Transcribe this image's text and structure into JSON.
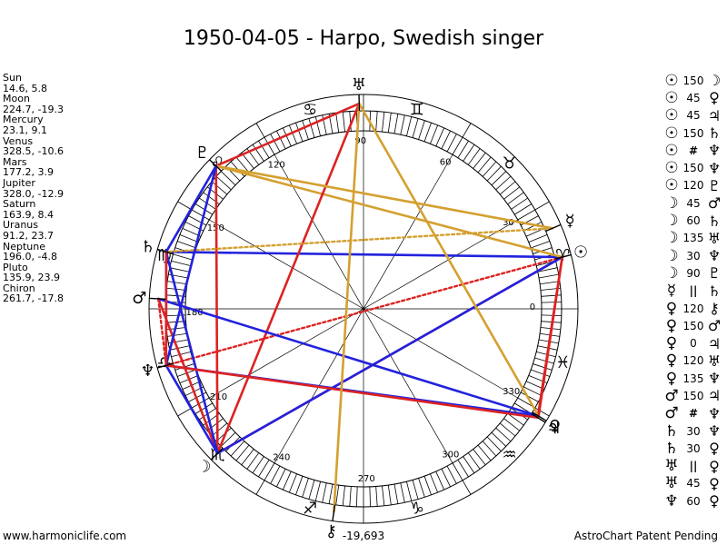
{
  "title": "1950-04-05 - Harpo, Swedish singer",
  "planets": [
    {
      "name": "Sun",
      "coords": "14.6, 5.8",
      "lon": 14.6,
      "glyph": "☉"
    },
    {
      "name": "Moon",
      "coords": "224.7, -19.3",
      "lon": 224.7,
      "glyph": "☽"
    },
    {
      "name": "Mercury",
      "coords": "23.1, 9.1",
      "lon": 23.1,
      "glyph": "☿"
    },
    {
      "name": "Venus",
      "coords": "328.5, -10.6",
      "lon": 328.5,
      "glyph": "♀"
    },
    {
      "name": "Mars",
      "coords": "177.2, 3.9",
      "lon": 177.2,
      "glyph": "♂"
    },
    {
      "name": "Jupiter",
      "coords": "328.0, -12.9",
      "lon": 328.0,
      "glyph": "♃"
    },
    {
      "name": "Saturn",
      "coords": "163.9, 8.4",
      "lon": 163.9,
      "glyph": "♄"
    },
    {
      "name": "Uranus",
      "coords": "91.2, 23.7",
      "lon": 91.2,
      "glyph": "♅"
    },
    {
      "name": "Neptune",
      "coords": "196.0, -4.8",
      "lon": 196.0,
      "glyph": "♆"
    },
    {
      "name": "Pluto",
      "coords": "135.9, 23.9",
      "lon": 135.9,
      "glyph": "♇"
    },
    {
      "name": "Chiron",
      "coords": "261.7, -17.8",
      "lon": 261.7,
      "glyph": "⚷"
    }
  ],
  "aspects": [
    {
      "p1": "☉",
      "deg": "150",
      "p2": "☽"
    },
    {
      "p1": "☉",
      "deg": "45",
      "p2": "♀"
    },
    {
      "p1": "☉",
      "deg": "45",
      "p2": "♃"
    },
    {
      "p1": "☉",
      "deg": "150",
      "p2": "♄"
    },
    {
      "p1": "☉",
      "deg": "#",
      "p2": "♆"
    },
    {
      "p1": "☉",
      "deg": "150",
      "p2": "♆"
    },
    {
      "p1": "☉",
      "deg": "120",
      "p2": "♇"
    },
    {
      "p1": "☽",
      "deg": "45",
      "p2": "♂"
    },
    {
      "p1": "☽",
      "deg": "60",
      "p2": "♄"
    },
    {
      "p1": "☽",
      "deg": "135",
      "p2": "♅"
    },
    {
      "p1": "☽",
      "deg": "30",
      "p2": "♆"
    },
    {
      "p1": "☽",
      "deg": "90",
      "p2": "♇"
    },
    {
      "p1": "☿",
      "deg": "||",
      "p2": "♄"
    },
    {
      "p1": "♀",
      "deg": "120",
      "p2": "⚷"
    },
    {
      "p1": "♀",
      "deg": "150",
      "p2": "♂"
    },
    {
      "p1": "♀",
      "deg": "0",
      "p2": "♃"
    },
    {
      "p1": "♀",
      "deg": "120",
      "p2": "♅"
    },
    {
      "p1": "♀",
      "deg": "135",
      "p2": "♆"
    },
    {
      "p1": "♂",
      "deg": "150",
      "p2": "♃"
    },
    {
      "p1": "♂",
      "deg": "#",
      "p2": "♆"
    },
    {
      "p1": "♄",
      "deg": "30",
      "p2": "♆"
    },
    {
      "p1": "♄",
      "deg": "30",
      "p2": "♀"
    },
    {
      "p1": "♅",
      "deg": "||",
      "p2": "♀"
    },
    {
      "p1": "♅",
      "deg": "45",
      "p2": "♀"
    },
    {
      "p1": "♆",
      "deg": "60",
      "p2": "♀"
    }
  ],
  "degree_labels": [
    {
      "deg": 0,
      "text": "0"
    },
    {
      "deg": 30,
      "text": "30"
    },
    {
      "deg": 60,
      "text": "60"
    },
    {
      "deg": 90,
      "text": "90"
    },
    {
      "deg": 120,
      "text": "120"
    },
    {
      "deg": 150,
      "text": "150"
    },
    {
      "deg": 180,
      "text": "180"
    },
    {
      "deg": 210,
      "text": "210"
    },
    {
      "deg": 240,
      "text": "240"
    },
    {
      "deg": 270,
      "text": "270"
    },
    {
      "deg": 300,
      "text": "300"
    },
    {
      "deg": 330,
      "text": "330"
    }
  ],
  "signs": [
    {
      "glyph": "♈",
      "deg": 15
    },
    {
      "glyph": "♉",
      "deg": 45
    },
    {
      "glyph": "♊",
      "deg": 75
    },
    {
      "glyph": "♋",
      "deg": 105
    },
    {
      "glyph": "♌",
      "deg": 135
    },
    {
      "glyph": "♍",
      "deg": 165
    },
    {
      "glyph": "♎",
      "deg": 195
    },
    {
      "glyph": "♏",
      "deg": 225
    },
    {
      "glyph": "♐",
      "deg": 255
    },
    {
      "glyph": "♑",
      "deg": 285
    },
    {
      "glyph": "♒",
      "deg": 315
    },
    {
      "glyph": "♓",
      "deg": 345
    }
  ],
  "aspect_lines": [
    {
      "a": 14.6,
      "b": 224.7,
      "color": "#dd2222",
      "dotted": false
    },
    {
      "a": 14.6,
      "b": 328.0,
      "color": "#dd2222",
      "dotted": false
    },
    {
      "a": 14.6,
      "b": 196.0,
      "color": "#dd2222",
      "dotted": true
    },
    {
      "a": 14.6,
      "b": 163.9,
      "color": "#2222dd",
      "dotted": false
    },
    {
      "a": 14.6,
      "b": 135.9,
      "color": "#d4a030",
      "dotted": false
    },
    {
      "a": 224.7,
      "b": 91.2,
      "color": "#dd2222",
      "dotted": false
    },
    {
      "a": 224.7,
      "b": 135.9,
      "color": "#dd2222",
      "dotted": false
    },
    {
      "a": 224.7,
      "b": 177.2,
      "color": "#dd2222",
      "dotted": false
    },
    {
      "a": 224.7,
      "b": 163.9,
      "color": "#2222dd",
      "dotted": false
    },
    {
      "a": 224.7,
      "b": 196.0,
      "color": "#2222dd",
      "dotted": false
    },
    {
      "a": 224.7,
      "b": 14.6,
      "color": "#2222dd",
      "dotted": false
    },
    {
      "a": 23.1,
      "b": 163.9,
      "color": "#d4a030",
      "dotted": true
    },
    {
      "a": 91.2,
      "b": 135.9,
      "color": "#dd2222",
      "dotted": false
    },
    {
      "a": 91.2,
      "b": 328.5,
      "color": "#d4a030",
      "dotted": false
    },
    {
      "a": 135.9,
      "b": 23.1,
      "color": "#d4a030",
      "dotted": false
    },
    {
      "a": 135.9,
      "b": 196.0,
      "color": "#2222dd",
      "dotted": false
    },
    {
      "a": 135.9,
      "b": 163.9,
      "color": "#2222dd",
      "dotted": false
    },
    {
      "a": 163.9,
      "b": 196.0,
      "color": "#2222dd",
      "dotted": false
    },
    {
      "a": 177.2,
      "b": 328.5,
      "color": "#2222dd",
      "dotted": false
    },
    {
      "a": 177.2,
      "b": 196.0,
      "color": "#dd2222",
      "dotted": true
    },
    {
      "a": 196.0,
      "b": 328.5,
      "color": "#2222dd",
      "dotted": false
    },
    {
      "a": 196.0,
      "b": 328.0,
      "color": "#dd2222",
      "dotted": false
    },
    {
      "a": 261.7,
      "b": 91.2,
      "color": "#d4a030",
      "dotted": false
    },
    {
      "a": 328.5,
      "b": 14.6,
      "color": "#dd2222",
      "dotted": false
    },
    {
      "a": 196.0,
      "b": 163.9,
      "color": "#dd2222",
      "dotted": false
    }
  ],
  "center_readout": "-19,693",
  "footer_left": "www.harmoniclife.com",
  "footer_right": "AstroChart Patent Pending"
}
